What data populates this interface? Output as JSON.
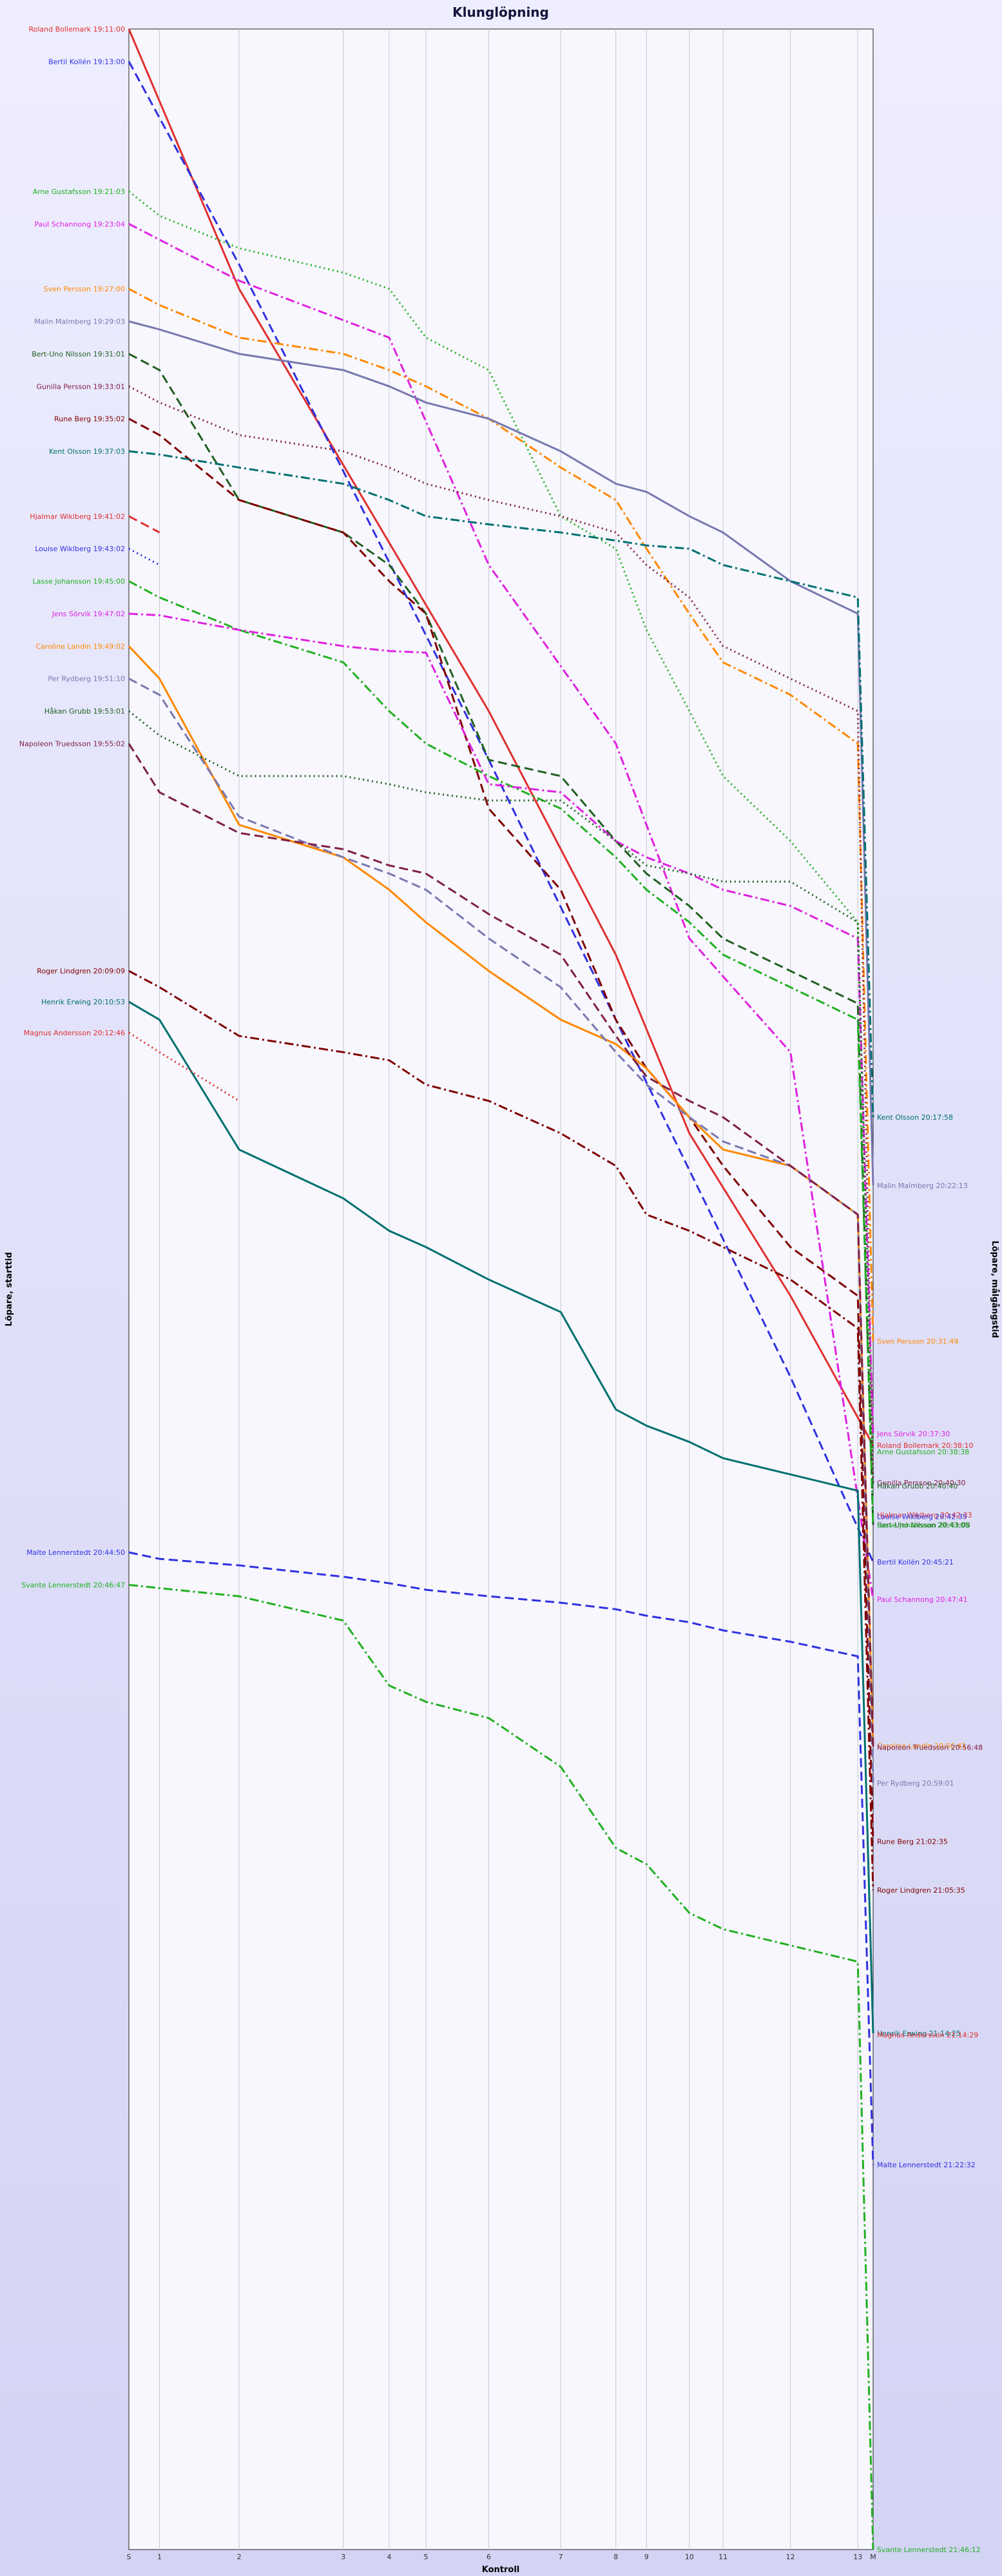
{
  "chart_data": {
    "type": "line",
    "title": "Klunglöpning",
    "xlabel": "Kontroll",
    "ylabel_left": "Löpare, starttid",
    "ylabel_right": "Löpare, målgångstid",
    "categories": [
      "S",
      "1",
      "2",
      "3",
      "4",
      "5",
      "6",
      "7",
      "8",
      "9",
      "10",
      "11",
      "12",
      "13",
      "M"
    ],
    "x_positions": [
      0,
      1,
      3.6,
      7.0,
      8.5,
      9.7,
      11.75,
      14.1,
      15.9,
      16.9,
      18.3,
      19.4,
      21.6,
      23.8,
      24.3
    ],
    "time_range": [
      "19:11:00",
      "21:46:12"
    ],
    "grid": true,
    "series": [
      {
        "name": "Roland Bollemark",
        "start_label": "Roland Bollemark 19:11:00",
        "end_label": "Roland Bollemark 20:38:10",
        "color": "#e03030",
        "dash": "solid",
        "times": [
          0,
          null,
          16,
          null,
          null,
          null,
          42,
          null,
          57,
          null,
          68,
          null,
          78,
          null,
          87.2
        ]
      },
      {
        "name": "Bertil Kollén",
        "start_label": "Bertil Kollén 19:13:00",
        "end_label": "Bertil Kollén 20:45:21",
        "color": "#3030e0",
        "dash": "dash",
        "times": [
          2,
          null,
          14.5,
          null,
          null,
          null,
          45,
          null,
          61,
          null,
          null,
          null,
          83,
          null,
          94.4
        ]
      },
      {
        "name": "Arne Gustafsson",
        "start_label": "Arne Gustafsson 19:21:03",
        "end_label": "Arne Gustafsson 20:38:38",
        "color": "#20b020",
        "dash": "dot",
        "times": [
          10,
          11.5,
          13.5,
          15,
          16,
          19,
          21,
          30,
          32,
          37,
          42,
          46,
          50,
          55,
          87.6
        ]
      },
      {
        "name": "Paul Schannong",
        "start_label": "Paul Schannong 19:23:04",
        "end_label": "Paul Schannong 20:47:41",
        "color": "#e020e0",
        "dash": "dashdot",
        "times": [
          12,
          null,
          15.5,
          null,
          19,
          null,
          33,
          null,
          44,
          null,
          56,
          null,
          63,
          null,
          96.7
        ]
      },
      {
        "name": "Sven Persson",
        "start_label": "Sven Persson 19:27:00",
        "end_label": "Sven Persson 20:31:49",
        "color": "#ff8800",
        "dash": "dashdot",
        "times": [
          16,
          17,
          19,
          20,
          21,
          22,
          24,
          27,
          29,
          32,
          36,
          39,
          41,
          44,
          80.8
        ]
      },
      {
        "name": "Malin Malmberg",
        "start_label": "Malin Malmberg 19:29:03",
        "end_label": "Malin Malmberg 20:22:13",
        "color": "#7878b0",
        "dash": "solid",
        "times": [
          18,
          18.5,
          20,
          21,
          22,
          23,
          24,
          26,
          28,
          28.5,
          30,
          31,
          34,
          36,
          71.2
        ]
      },
      {
        "name": "Bert-Uno Nilsson",
        "start_label": "Bert-Uno Nilsson 19:31:01",
        "end_label": "Bert-Uno Nilsson 20:43:08",
        "color": "#206020",
        "dash": "dash",
        "times": [
          20,
          21,
          29,
          31,
          33,
          36,
          45,
          46,
          50,
          52,
          54,
          56,
          58,
          60,
          92.1
        ]
      },
      {
        "name": "Gunilla Persson",
        "start_label": "Gunilla Persson 19:33:01",
        "end_label": "Gunilla Persson 20:40:30",
        "color": "#802040",
        "dash": "dot",
        "times": [
          22,
          23,
          25,
          26,
          27,
          28,
          29,
          30,
          31,
          33,
          35,
          38,
          40,
          42,
          89.5
        ]
      },
      {
        "name": "Rune Berg",
        "start_label": "Rune Berg 19:35:02",
        "end_label": "Rune Berg 21:02:35",
        "color": "#800000",
        "dash": "dash",
        "times": [
          24,
          25,
          29,
          31,
          34,
          36,
          48,
          53,
          61,
          64,
          67,
          70,
          75,
          78,
          111.6
        ]
      },
      {
        "name": "Kent Olsson",
        "start_label": "Kent Olsson 19:37:03",
        "end_label": "Kent Olsson 20:17:58",
        "color": "#007070",
        "dash": "dashdot",
        "times": [
          26,
          26.2,
          27,
          28,
          29,
          30,
          30.5,
          31,
          31.5,
          31.8,
          32,
          33,
          34,
          35,
          67
        ]
      },
      {
        "name": "Hjalmar Wiklberg",
        "start_label": "Hjalmar Wiklberg 19:41:02",
        "end_label": "Hjalmar Wiklberg 20:42:33",
        "color": "#e03030",
        "dash": "dash",
        "times": [
          30,
          31,
          null,
          null,
          null,
          null,
          null,
          null,
          null,
          null,
          null,
          null,
          null,
          null,
          91.5
        ]
      },
      {
        "name": "Louise Wiklberg",
        "start_label": "Louise Wiklberg 19:43:02",
        "end_label": "Louise Wiklberg 20:42:35",
        "color": "#3030e0",
        "dash": "dot",
        "times": [
          32,
          33,
          null,
          null,
          null,
          null,
          null,
          null,
          null,
          null,
          null,
          null,
          null,
          null,
          91.6
        ]
      },
      {
        "name": "Lasse Johansson",
        "start_label": "Lasse Johansson 19:45:00",
        "end_label": "Lasse Johansson 20:43:05",
        "color": "#20b020",
        "dash": "dashdot",
        "times": [
          34,
          35,
          37,
          39,
          42,
          44,
          46,
          48,
          51,
          53,
          55,
          57,
          59,
          61,
          92.1
        ]
      },
      {
        "name": "Jens Sörvik",
        "start_label": "Jens Sörvik 19:47:02",
        "end_label": "Jens Sörvik 20:37:30",
        "color": "#e020e0",
        "dash": "dashdot",
        "times": [
          36,
          36.1,
          37,
          38,
          38.3,
          38.4,
          46.5,
          47,
          50,
          51,
          52,
          53,
          54,
          56,
          86.5
        ]
      },
      {
        "name": "Caroline Landin",
        "start_label": "Caroline Landin 19:49:02",
        "end_label": "Caroline Landin 20:56:41",
        "color": "#ff8800",
        "dash": "solid",
        "times": [
          38,
          40,
          49,
          51,
          53,
          55,
          58,
          61,
          62.5,
          64,
          67,
          69,
          70,
          73,
          105.7
        ]
      },
      {
        "name": "Per Rydberg",
        "start_label": "Per Rydberg 19:51:10",
        "end_label": "Per Rydberg 20:59:01",
        "color": "#7878b0",
        "dash": "dash",
        "times": [
          40,
          41,
          48.5,
          51,
          52,
          53,
          56,
          59,
          63,
          65,
          67,
          68.5,
          70,
          73,
          108
        ]
      },
      {
        "name": "Håkan Grubb",
        "start_label": "Håkan Grubb 19:53:01",
        "end_label": "Håkan Grubb 20:40:40",
        "color": "#206020",
        "dash": "dot",
        "times": [
          42,
          43.5,
          46,
          46,
          46.5,
          47,
          47.5,
          47.5,
          50,
          51.5,
          52,
          52.5,
          52.5,
          55,
          89.7
        ]
      },
      {
        "name": "Napoleon Truedsson",
        "start_label": "Napoleon Truedsson 19:55:02",
        "end_label": "Napoleon Truedsson 20:56:48",
        "color": "#802040",
        "dash": "dash",
        "times": [
          44,
          47,
          49.5,
          50.5,
          51.5,
          52,
          54.5,
          57,
          62,
          64.5,
          66,
          67,
          70,
          73,
          105.8
        ]
      },
      {
        "name": "Roger Lindgren",
        "start_label": "Roger Lindgren 20:09:09",
        "end_label": "Roger Lindgren 21:05:35",
        "color": "#800000",
        "dash": "dashdot",
        "times": [
          58,
          59,
          62,
          63,
          63.5,
          65,
          66,
          68,
          70,
          73,
          74,
          75,
          77,
          80,
          114.6
        ]
      },
      {
        "name": "Henrik Erwing",
        "start_label": "Henrik Erwing 20:10:53",
        "end_label": "Henrik Erwing 21:14:25",
        "color": "#007070",
        "dash": "solid",
        "times": [
          59.9,
          61,
          69,
          72,
          74,
          75,
          77,
          79,
          85,
          86,
          87,
          88,
          89,
          90,
          123.4
        ]
      },
      {
        "name": "Magnus Andersson",
        "start_label": "Magnus Andersson 20:12:46",
        "end_label": "Magnus Andersson 21:14:29",
        "color": "#e03030",
        "dash": "dot",
        "times": [
          61.8,
          63,
          66,
          null,
          null,
          null,
          null,
          null,
          null,
          null,
          null,
          null,
          null,
          null,
          123.5
        ]
      },
      {
        "name": "Malte Lennerstedt",
        "start_label": "Malte Lennerstedt 20:44:50",
        "end_label": "Malte Lennerstedt 21:22:32",
        "color": "#3030e0",
        "dash": "dash",
        "times": [
          93.8,
          94.2,
          94.6,
          95.3,
          95.7,
          96.1,
          96.5,
          96.9,
          97.3,
          97.7,
          98.1,
          98.6,
          99.3,
          100.2,
          131.5
        ]
      },
      {
        "name": "Svante Lennerstedt",
        "start_label": "Svante Lennerstedt 20:46:47",
        "end_label": "Svante Lennerstedt 21:46:12",
        "color": "#20b020",
        "dash": "dashdot",
        "times": [
          95.8,
          96,
          96.5,
          98,
          102,
          103,
          104,
          107,
          112,
          113,
          116,
          117,
          118,
          119,
          155.2
        ]
      }
    ]
  }
}
